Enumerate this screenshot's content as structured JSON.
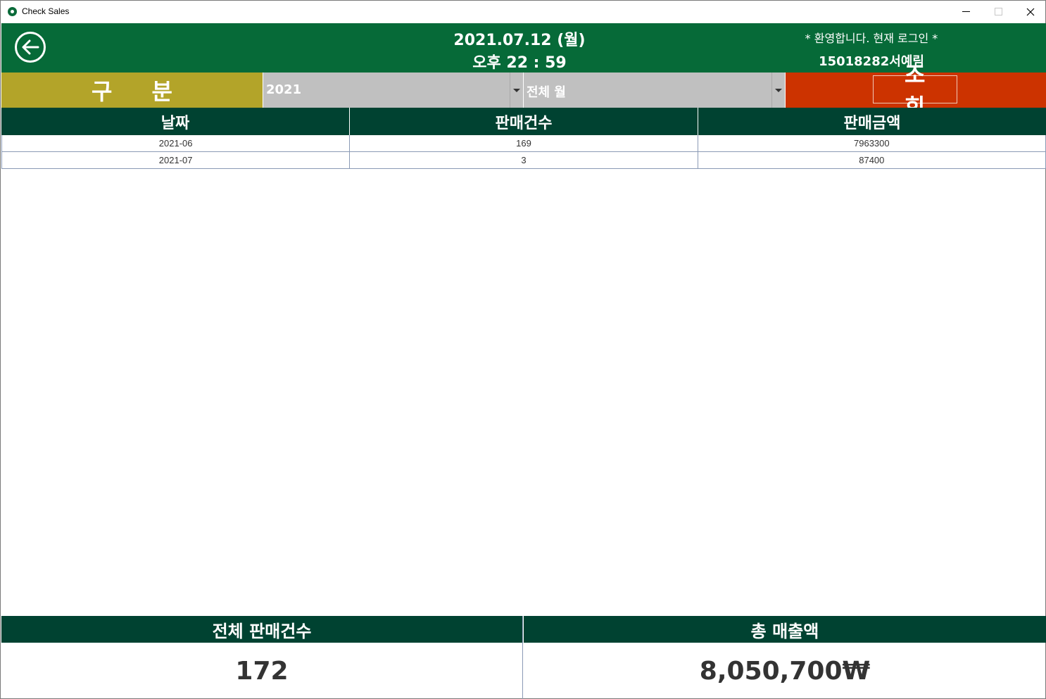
{
  "window": {
    "title": "Check Sales"
  },
  "header": {
    "date": "2021.07.12 (월)",
    "time": "오후 22 : 59",
    "welcome": "* 환영합니다. 현재 로그인 *",
    "user": "15018282서예림"
  },
  "filter": {
    "category_label": "구분",
    "year_value": "2021",
    "month_value": "전체 월",
    "search_label": "조회"
  },
  "table": {
    "columns": [
      "날짜",
      "판매건수",
      "판매금액"
    ],
    "rows": [
      [
        "2021-06",
        "169",
        "7963300"
      ],
      [
        "2021-07",
        "3",
        "87400"
      ]
    ]
  },
  "summary": {
    "total_count_label": "전체 판매건수",
    "total_count_value": "172",
    "total_sales_label": "총 매출액",
    "total_sales_value": "8,050,700₩"
  },
  "colors": {
    "header_green": "#066a38",
    "dark_green": "#004231",
    "category_gold": "#b3a429",
    "search_red": "#cc3300",
    "select_gray": "#c0c0c0"
  },
  "icons": {
    "app": "starbucks-logo-icon",
    "back": "back-arrow-icon",
    "dropdown": "chevron-down-icon"
  }
}
